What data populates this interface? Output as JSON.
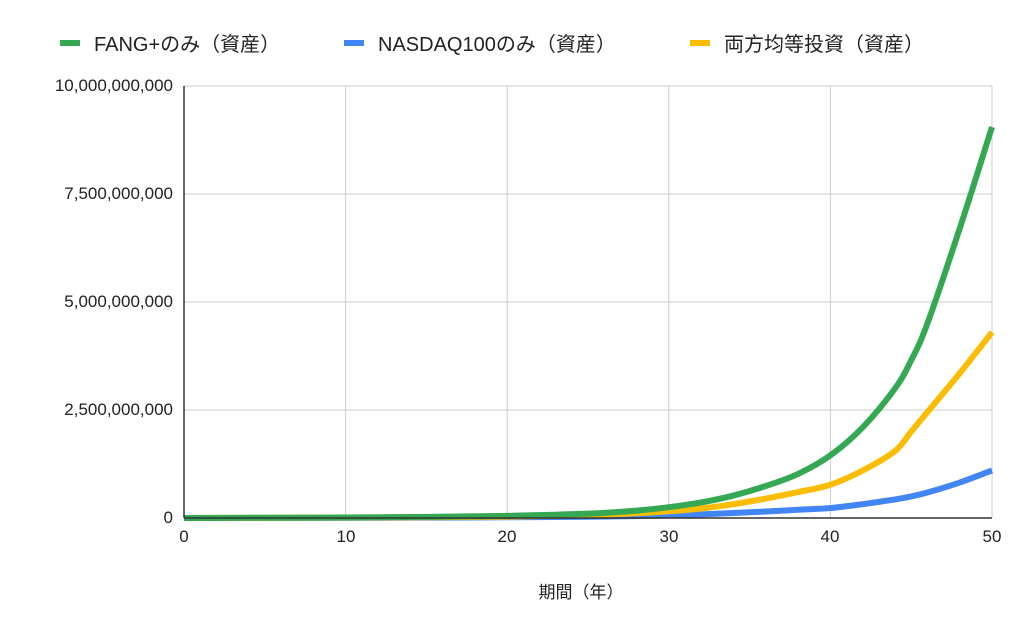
{
  "chart_data": {
    "type": "line",
    "title": "",
    "xlabel": "期間（年）",
    "ylabel": "",
    "xlim": [
      0,
      50
    ],
    "ylim": [
      0,
      10000000000
    ],
    "grid": true,
    "legend_position": "top",
    "x_ticks": [
      "0",
      "10",
      "20",
      "30",
      "40",
      "50"
    ],
    "y_ticks": [
      "0",
      "2,500,000,000",
      "5,000,000,000",
      "7,500,000,000",
      "10,000,000,000"
    ],
    "x": [
      0,
      5,
      10,
      15,
      20,
      25,
      28,
      30,
      32,
      34,
      36,
      38,
      40,
      42,
      44,
      45,
      46,
      48,
      50
    ],
    "series": [
      {
        "name": "FANG+のみ（資産）",
        "color": "#34a853",
        "values": [
          0,
          5000000,
          12000000,
          25000000,
          50000000,
          100000000,
          170000000,
          250000000,
          360000000,
          520000000,
          740000000,
          1020000000,
          1450000000,
          2100000000,
          3000000000,
          3650000000,
          4500000000,
          6700000000,
          9050000000
        ]
      },
      {
        "name": "NASDAQ100のみ（資産）",
        "color": "#4285f4",
        "values": [
          0,
          2000000,
          5000000,
          9000000,
          16000000,
          30000000,
          45000000,
          60000000,
          85000000,
          115000000,
          150000000,
          190000000,
          230000000,
          320000000,
          430000000,
          500000000,
          590000000,
          820000000,
          1100000000
        ]
      },
      {
        "name": "両方均等投資（資産）",
        "color": "#fbbc04",
        "values": [
          0,
          4000000,
          9000000,
          17000000,
          33000000,
          65000000,
          110000000,
          155000000,
          220000000,
          320000000,
          450000000,
          600000000,
          770000000,
          1100000000,
          1550000000,
          2000000000,
          2450000000,
          3350000000,
          4300000000
        ]
      }
    ]
  },
  "legend": {
    "items": [
      {
        "label": "FANG+のみ（資産）",
        "color": "#34a853"
      },
      {
        "label": "NASDAQ100のみ（資産）",
        "color": "#4285f4"
      },
      {
        "label": "両方均等投資（資産）",
        "color": "#fbbc04"
      }
    ]
  },
  "axes": {
    "x_title": "期間（年）",
    "x_ticks": [
      "0",
      "10",
      "20",
      "30",
      "40",
      "50"
    ],
    "y_ticks": [
      "0",
      "2,500,000,000",
      "5,000,000,000",
      "7,500,000,000",
      "10,000,000,000"
    ]
  }
}
